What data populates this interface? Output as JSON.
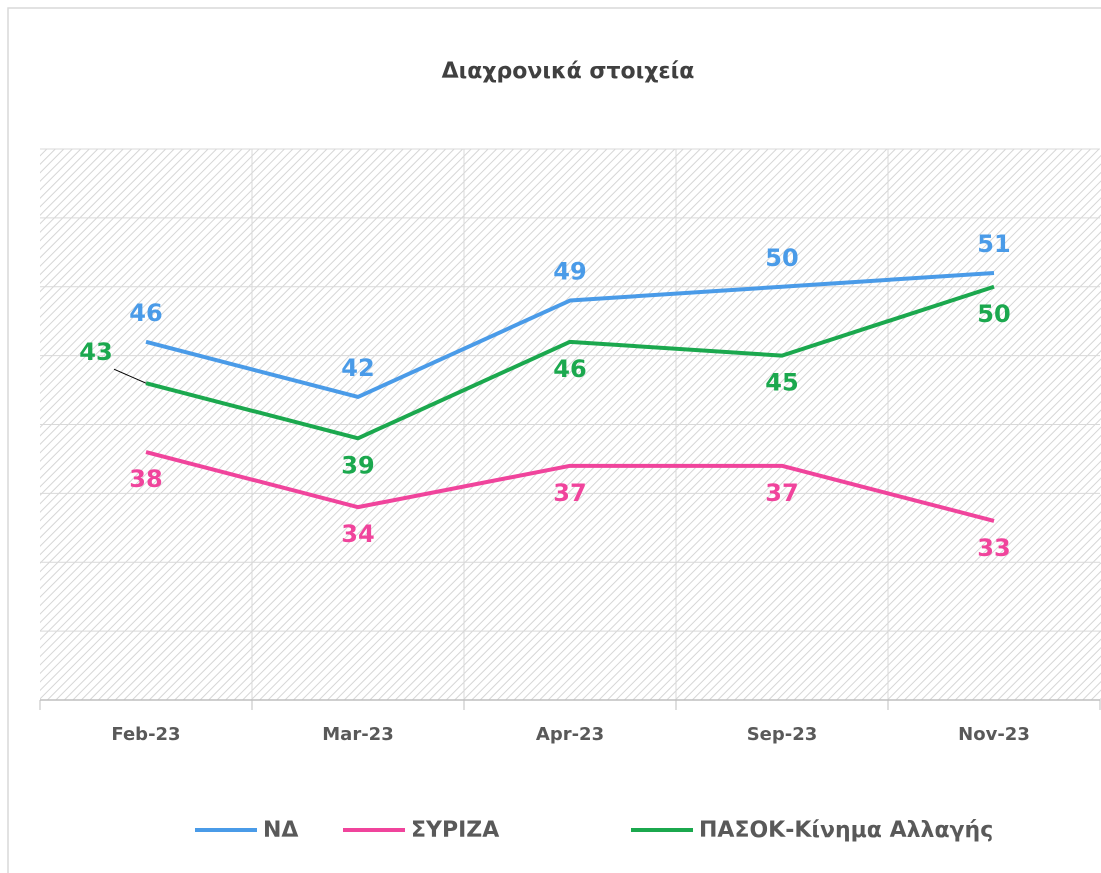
{
  "chart_data": {
    "type": "line",
    "title": "Διαχρονικά στοιχεία",
    "categories": [
      "Feb-23",
      "Mar-23",
      "Apr-23",
      "Sep-23",
      "Nov-23"
    ],
    "series": [
      {
        "name": "ΝΔ",
        "color": "#4a9be8",
        "values": [
          46,
          42,
          49,
          50,
          51
        ]
      },
      {
        "name": "ΣΥΡΙΖΑ",
        "color": "#f0449c",
        "values": [
          38,
          34,
          37,
          37,
          33
        ]
      },
      {
        "name": "ΠΑΣΟΚ-Κίνημα Αλλαγής",
        "color": "#1ba84e",
        "values": [
          43,
          39,
          46,
          45,
          50
        ]
      }
    ],
    "ylim": [
      20,
      60
    ],
    "yticks": [
      20,
      25,
      30,
      35,
      40,
      45,
      50,
      55,
      60
    ],
    "grid": true,
    "legend": "bottom"
  }
}
